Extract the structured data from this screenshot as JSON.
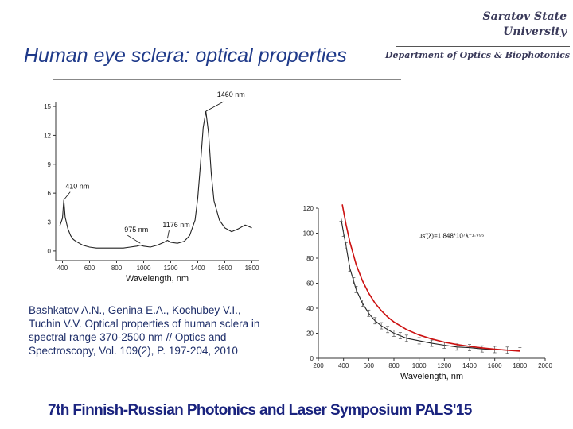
{
  "header": {
    "university_line1": "Saratov State",
    "university_line2": "University",
    "title": "Human eye sclera: optical properties",
    "department": "Department of Optics & Biophotonics"
  },
  "reference_text": "Bashkatov A.N., Genina E.A., Kochubey V.I., Tuchin V.V. Optical properties of human sclera in spectral range 370-2500 nm // Optics and Spectroscopy, Vol. 109(2), P. 197-204, 2010",
  "footer": {
    "event": "7th Finnish-Russian Photonics and Laser Symposium PALS'15"
  },
  "chart_data": [
    {
      "type": "line",
      "xlabel": "Wavelength, nm",
      "ylabel": "",
      "xlim": [
        350,
        1850
      ],
      "ylim": [
        -1,
        15.5
      ],
      "x_ticks": [
        400,
        600,
        800,
        1000,
        1200,
        1400,
        1600,
        1800
      ],
      "y_ticks": [
        0,
        3,
        6,
        9,
        12,
        15
      ],
      "grid": false,
      "annotations": [
        {
          "label": "1460 nm",
          "x": 1460,
          "y": 14.5
        },
        {
          "label": "410 nm",
          "x": 410,
          "y": 5.3
        },
        {
          "label": "975 nm",
          "x": 975,
          "y": 0.8
        },
        {
          "label": "1176 nm",
          "x": 1176,
          "y": 1.3
        }
      ],
      "series": [
        {
          "color": "#222222",
          "x": [
            380,
            400,
            410,
            420,
            440,
            460,
            480,
            500,
            550,
            600,
            650,
            700,
            750,
            800,
            850,
            900,
            950,
            975,
            1000,
            1050,
            1100,
            1150,
            1176,
            1200,
            1250,
            1300,
            1340,
            1380,
            1400,
            1420,
            1440,
            1460,
            1480,
            1500,
            1520,
            1560,
            1600,
            1650,
            1700,
            1750,
            1800
          ],
          "y": [
            2.6,
            3.4,
            5.3,
            3.5,
            2.3,
            1.6,
            1.2,
            1.0,
            0.6,
            0.4,
            0.3,
            0.3,
            0.3,
            0.3,
            0.3,
            0.4,
            0.5,
            0.6,
            0.5,
            0.4,
            0.6,
            0.9,
            1.1,
            0.9,
            0.8,
            1.0,
            1.6,
            3.2,
            5.5,
            9.0,
            12.8,
            14.5,
            12.2,
            8.0,
            5.2,
            3.2,
            2.4,
            2.0,
            2.3,
            2.7,
            2.4
          ]
        }
      ]
    },
    {
      "type": "line",
      "xlabel": "Wavelength, nm",
      "ylabel": "",
      "xlim": [
        200,
        2000
      ],
      "ylim": [
        0,
        120
      ],
      "x_ticks": [
        200,
        400,
        600,
        800,
        1000,
        1200,
        1400,
        1600,
        1800,
        2000
      ],
      "y_ticks": [
        0,
        20,
        40,
        60,
        80,
        100,
        120
      ],
      "grid": false,
      "annotations": [
        {
          "label": "μs′(λ)=1.848*10⁷λ⁻¹·⁹⁹⁵",
          "x": 880,
          "y": 100
        }
      ],
      "series": [
        {
          "color": "#222222",
          "x": [
            380,
            400,
            420,
            450,
            480,
            500,
            550,
            600,
            650,
            700,
            750,
            800,
            850,
            900,
            1000,
            1100,
            1200,
            1300,
            1400,
            1500,
            1600,
            1700,
            1800
          ],
          "y": [
            112,
            100,
            90,
            72,
            62,
            55,
            44,
            36,
            30,
            26,
            23,
            20,
            18,
            16,
            14,
            12,
            10.5,
            9,
            8.5,
            7.5,
            7,
            6.5,
            6
          ]
        },
        {
          "color": "#cc1111",
          "x": [
            390,
            420,
            450,
            500,
            550,
            600,
            650,
            700,
            750,
            800,
            900,
            1000,
            1100,
            1200,
            1300,
            1400,
            1500,
            1600,
            1700,
            1800
          ],
          "y": [
            123,
            107,
            93,
            75,
            62,
            52,
            44,
            38,
            33,
            29,
            23,
            18.6,
            15.4,
            12.9,
            11,
            9.5,
            8.3,
            7.3,
            6.5,
            5.8
          ]
        }
      ]
    }
  ]
}
